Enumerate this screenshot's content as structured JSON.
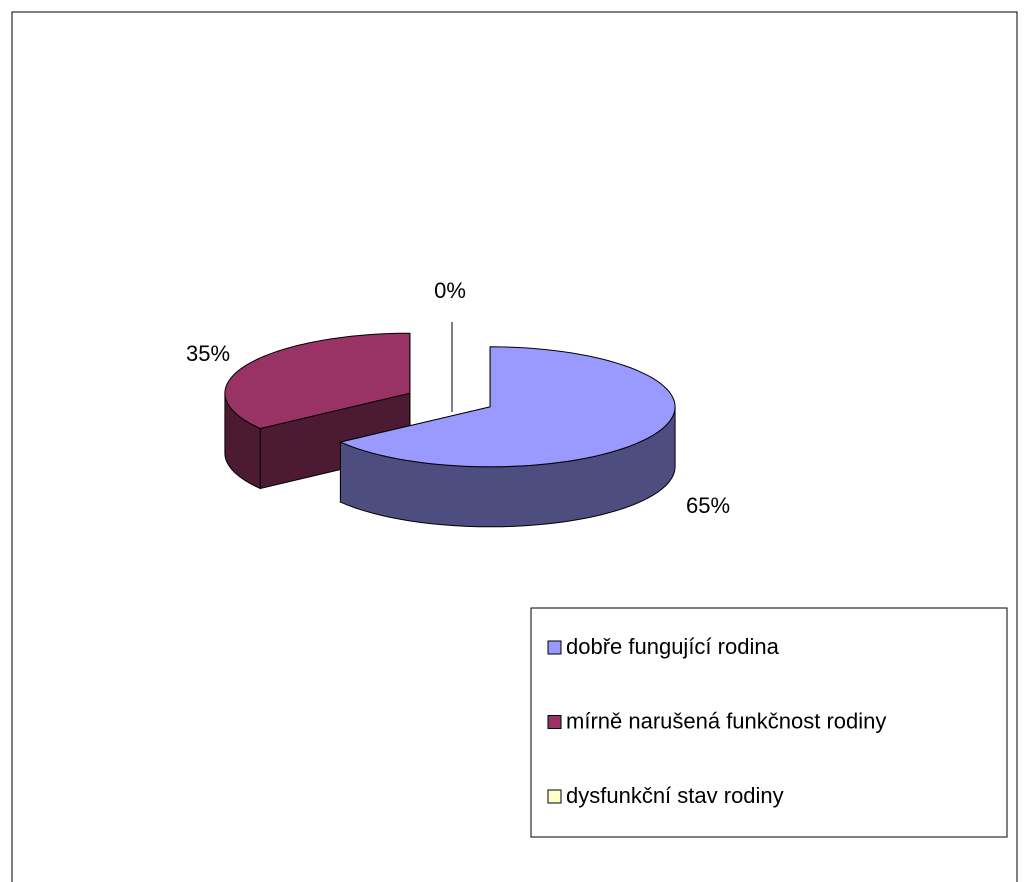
{
  "chart_data": {
    "type": "pie",
    "categories": [
      "dobře fungující rodina",
      "mírně narušená funkčnost rodiny",
      "dysfunkční stav rodiny"
    ],
    "values": [
      65,
      35,
      0
    ],
    "value_labels": [
      "65%",
      "35%",
      "0%"
    ],
    "colors": [
      "#9999ff",
      "#993366",
      "#ffffcc"
    ],
    "legend": "bottom-right"
  }
}
